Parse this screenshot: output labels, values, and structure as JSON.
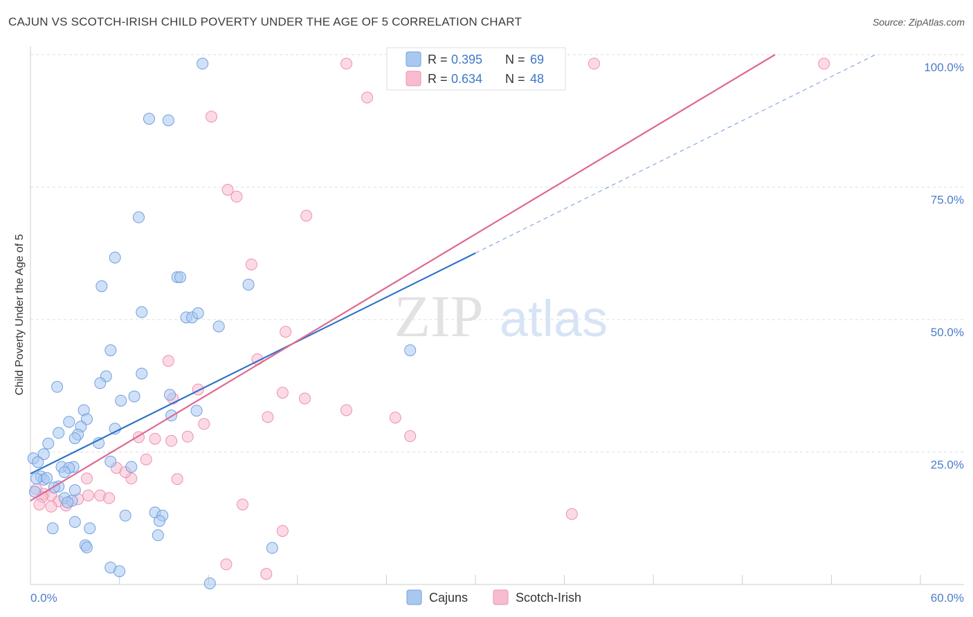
{
  "header": {
    "title": "CAJUN VS SCOTCH-IRISH CHILD POVERTY UNDER THE AGE OF 5 CORRELATION CHART",
    "source": "Source: ZipAtlas.com"
  },
  "watermark": {
    "zip": "ZIP",
    "atlas": "atlas"
  },
  "legend": {
    "r_label": "R =",
    "n_label": "N =",
    "rows": [
      {
        "r": "0.395",
        "n": "69"
      },
      {
        "r": "0.634",
        "n": "48"
      }
    ]
  },
  "colors": {
    "cajun_fill": "#a9c8f0",
    "cajun_stroke": "#6f9fe0",
    "cajun_line": "#2f72c9",
    "scotch_fill": "#f7bcd0",
    "scotch_stroke": "#ee8fb0",
    "scotch_line": "#e0678f",
    "axis_text": "#4a7cc9"
  },
  "chart_data": {
    "type": "scatter",
    "title": "CAJUN VS SCOTCH-IRISH CHILD POVERTY UNDER THE AGE OF 5 CORRELATION CHART",
    "xlabel": "",
    "ylabel": "Child Poverty Under the Age of 5",
    "xlim": [
      0,
      60
    ],
    "ylim": [
      0,
      100
    ],
    "x_tick_labels": [
      "0.0%",
      "60.0%"
    ],
    "y_tick_labels": [
      {
        "value": 100,
        "label": "100.0%"
      },
      {
        "value": 75,
        "label": "75.0%"
      },
      {
        "value": 50,
        "label": "50.0%"
      },
      {
        "value": 25,
        "label": "25.0%"
      }
    ],
    "series": [
      {
        "name": "Cajuns",
        "r": 0.395,
        "n": 69,
        "trend": {
          "x0": 0,
          "y0": 20.9,
          "x1": 60,
          "y1": 104.2,
          "solid_until_x": 30
        },
        "points": [
          [
            11.6,
            98.3
          ],
          [
            8.0,
            87.9
          ],
          [
            9.3,
            87.6
          ],
          [
            7.3,
            69.3
          ],
          [
            5.7,
            61.7
          ],
          [
            4.8,
            56.3
          ],
          [
            9.9,
            58.0
          ],
          [
            10.1,
            58.0
          ],
          [
            14.7,
            56.6
          ],
          [
            7.5,
            51.4
          ],
          [
            10.5,
            50.4
          ],
          [
            10.9,
            50.4
          ],
          [
            11.3,
            51.2
          ],
          [
            12.7,
            48.7
          ],
          [
            25.6,
            44.2
          ],
          [
            5.4,
            44.2
          ],
          [
            7.5,
            39.8
          ],
          [
            5.1,
            39.3
          ],
          [
            4.7,
            38.0
          ],
          [
            1.8,
            37.3
          ],
          [
            9.4,
            35.8
          ],
          [
            7.0,
            35.5
          ],
          [
            6.1,
            34.7
          ],
          [
            3.6,
            32.9
          ],
          [
            3.8,
            31.2
          ],
          [
            9.5,
            31.9
          ],
          [
            11.2,
            32.8
          ],
          [
            2.6,
            30.7
          ],
          [
            3.4,
            29.8
          ],
          [
            3.2,
            28.3
          ],
          [
            1.9,
            28.6
          ],
          [
            3.0,
            27.6
          ],
          [
            4.6,
            26.7
          ],
          [
            5.7,
            29.4
          ],
          [
            0.2,
            23.8
          ],
          [
            0.9,
            24.6
          ],
          [
            1.2,
            26.6
          ],
          [
            0.5,
            23.1
          ],
          [
            2.1,
            22.2
          ],
          [
            2.9,
            22.2
          ],
          [
            2.6,
            22.0
          ],
          [
            2.3,
            21.2
          ],
          [
            5.4,
            23.2
          ],
          [
            6.8,
            22.2
          ],
          [
            0.7,
            20.4
          ],
          [
            0.9,
            19.8
          ],
          [
            1.1,
            20.1
          ],
          [
            0.3,
            17.5
          ],
          [
            0.4,
            20.0
          ],
          [
            1.9,
            18.5
          ],
          [
            2.3,
            16.3
          ],
          [
            1.6,
            18.3
          ],
          [
            2.8,
            15.8
          ],
          [
            3.0,
            17.8
          ],
          [
            2.5,
            15.5
          ],
          [
            8.4,
            13.6
          ],
          [
            8.9,
            13.0
          ],
          [
            6.4,
            13.0
          ],
          [
            3.0,
            11.8
          ],
          [
            4.0,
            10.6
          ],
          [
            1.5,
            10.6
          ],
          [
            8.7,
            12.0
          ],
          [
            8.6,
            9.3
          ],
          [
            3.7,
            7.4
          ],
          [
            3.8,
            7.0
          ],
          [
            16.3,
            6.9
          ],
          [
            5.4,
            3.2
          ],
          [
            12.1,
            0.2
          ],
          [
            6.0,
            2.5
          ]
        ]
      },
      {
        "name": "Scotch-Irish",
        "r": 0.634,
        "n": 48,
        "trend": {
          "x0": 0,
          "y0": 15.8,
          "x1": 50.2,
          "y1": 100
        },
        "points": [
          [
            21.3,
            98.3
          ],
          [
            38.0,
            98.3
          ],
          [
            53.5,
            98.3
          ],
          [
            22.7,
            91.9
          ],
          [
            12.2,
            88.3
          ],
          [
            13.3,
            74.5
          ],
          [
            13.9,
            73.2
          ],
          [
            18.6,
            69.6
          ],
          [
            14.9,
            60.4
          ],
          [
            17.2,
            47.7
          ],
          [
            9.3,
            42.2
          ],
          [
            15.3,
            42.5
          ],
          [
            11.3,
            36.8
          ],
          [
            17.0,
            36.2
          ],
          [
            18.5,
            35.1
          ],
          [
            9.6,
            35.1
          ],
          [
            21.3,
            32.9
          ],
          [
            16.0,
            31.6
          ],
          [
            24.6,
            31.5
          ],
          [
            11.7,
            30.3
          ],
          [
            25.6,
            28.0
          ],
          [
            7.3,
            27.8
          ],
          [
            8.4,
            27.5
          ],
          [
            9.5,
            27.1
          ],
          [
            10.6,
            27.9
          ],
          [
            7.8,
            23.6
          ],
          [
            5.8,
            22.0
          ],
          [
            6.8,
            20.0
          ],
          [
            6.4,
            21.2
          ],
          [
            9.9,
            19.9
          ],
          [
            3.8,
            20.0
          ],
          [
            4.7,
            16.8
          ],
          [
            5.3,
            16.3
          ],
          [
            0.4,
            18.0
          ],
          [
            0.9,
            17.1
          ],
          [
            1.4,
            16.8
          ],
          [
            1.9,
            15.7
          ],
          [
            2.4,
            14.9
          ],
          [
            3.2,
            16.1
          ],
          [
            3.9,
            16.8
          ],
          [
            1.4,
            14.7
          ],
          [
            0.8,
            16.5
          ],
          [
            0.6,
            15.1
          ],
          [
            14.3,
            15.1
          ],
          [
            36.5,
            13.3
          ],
          [
            17.0,
            10.1
          ],
          [
            13.2,
            3.8
          ],
          [
            15.9,
            2.0
          ]
        ]
      }
    ]
  }
}
